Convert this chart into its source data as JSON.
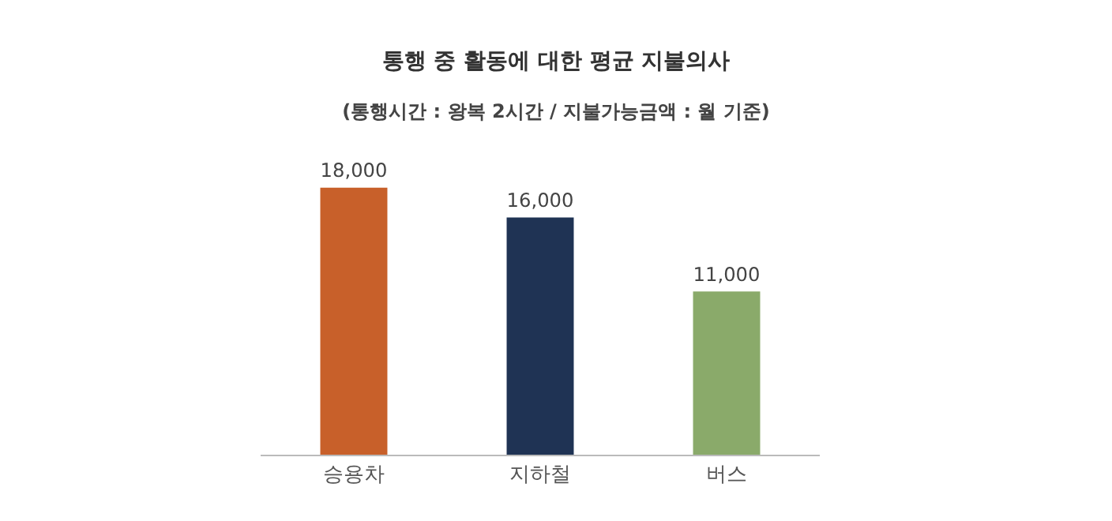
{
  "chart_data": {
    "type": "bar",
    "title": "통행 중 활동에 대한 평균 지불의사",
    "subtitle": "(통행시간 : 왕복 2시간 / 지불가능금액 : 월 기준)",
    "categories": [
      "승용차",
      "지하철",
      "버스"
    ],
    "values": [
      18000,
      16000,
      11000
    ],
    "colors": [
      "#c8602a",
      "#1f3354",
      "#8aaa6a"
    ],
    "value_labels": [
      "18,000",
      "16,000",
      "11,000"
    ]
  }
}
